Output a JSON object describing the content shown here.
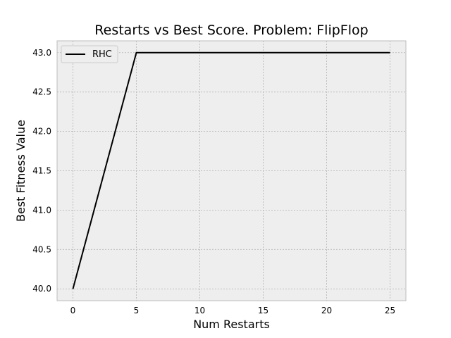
{
  "chart_data": {
    "type": "line",
    "title": "Restarts vs Best Score.  Problem: FlipFlop",
    "xlabel": "Num Restarts",
    "ylabel": "Best Fitness Value",
    "xlim": [
      -1.25,
      26.25
    ],
    "ylim": [
      39.85,
      43.15
    ],
    "xticks": [
      0,
      5,
      10,
      15,
      20,
      25
    ],
    "yticks": [
      40.0,
      40.5,
      41.0,
      41.5,
      42.0,
      42.5,
      43.0
    ],
    "xtick_labels": [
      "0",
      "5",
      "10",
      "15",
      "20",
      "25"
    ],
    "ytick_labels": [
      "40.0",
      "40.5",
      "41.0",
      "41.5",
      "42.0",
      "42.5",
      "43.0"
    ],
    "grid": true,
    "legend_position": "top-left",
    "series": [
      {
        "name": "RHC",
        "color": "#000000",
        "x": [
          0,
          5,
          10,
          15,
          20,
          25
        ],
        "y": [
          40.0,
          43.0,
          43.0,
          43.0,
          43.0,
          43.0
        ]
      }
    ],
    "colors": {
      "plot_background": "#eeeeee",
      "grid": "#b2b2b2",
      "axes_edge": "#bcbcbc"
    }
  }
}
